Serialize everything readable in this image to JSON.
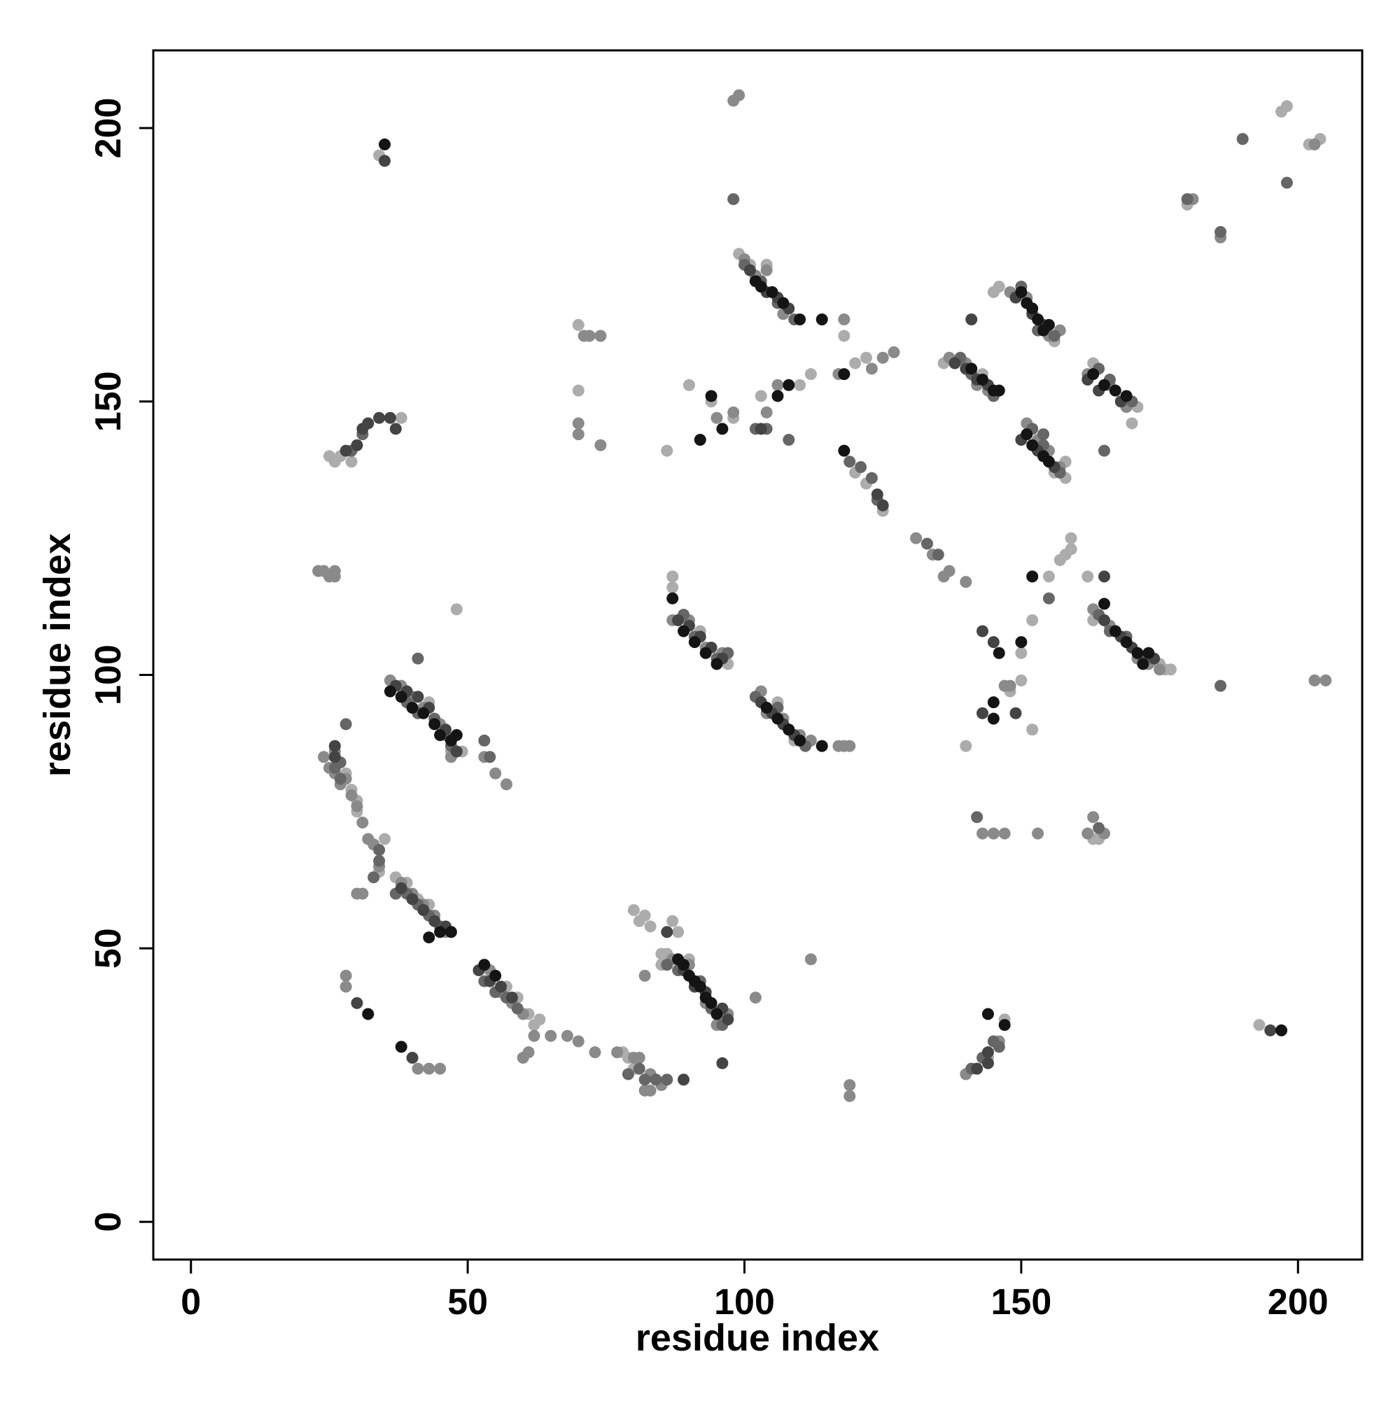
{
  "chart_data": {
    "type": "scatter",
    "xlabel": "residue index",
    "ylabel": "residue index",
    "xlim": [
      -6.8,
      211.6
    ],
    "ylim": [
      -6.9,
      214.2
    ],
    "xticks": [
      0,
      50,
      100,
      150,
      200
    ],
    "yticks": [
      0,
      50,
      100,
      150,
      200
    ],
    "grid": false,
    "series": [
      {
        "color": "#acacac",
        "x": [
          37,
          39,
          43,
          47,
          49,
          86,
          90,
          96,
          99,
          101,
          104,
          146,
          156,
          158,
          158,
          156,
          163,
          171,
          170,
          87,
          87,
          92,
          97,
          106,
          109,
          136,
          143,
          163,
          176,
          177,
          37,
          39,
          41,
          43,
          57,
          59,
          61,
          63,
          62,
          28,
          29,
          30,
          30,
          35,
          34,
          25,
          27,
          26,
          29,
          38,
          48,
          70,
          70,
          78,
          79,
          80,
          80,
          81,
          82,
          83,
          85,
          85,
          87,
          88,
          74,
          86,
          90,
          94,
          98,
          103,
          110,
          112,
          120,
          122,
          118,
          117,
          120,
          122,
          125,
          157,
          158,
          159,
          159,
          155,
          140,
          144,
          147,
          148,
          150,
          152,
          152,
          150,
          162,
          163,
          164,
          198,
          197,
          204,
          202,
          180,
          193,
          34,
          145,
          175
        ],
        "values": [
          98,
          96,
          95,
          86,
          86,
          49,
          48,
          37,
          177,
          175,
          175,
          171,
          161,
          136,
          139,
          137,
          157,
          149,
          146,
          118,
          116,
          108,
          102,
          95,
          88,
          157,
          155,
          110,
          101,
          101,
          63,
          62,
          59,
          58,
          43,
          41,
          38,
          37,
          36,
          82,
          79,
          77,
          75,
          70,
          64,
          140,
          140,
          139,
          139,
          147,
          112,
          164,
          152,
          31,
          30,
          28,
          57,
          55,
          56,
          54,
          47,
          49,
          55,
          53,
          162,
          141,
          153,
          150,
          147,
          151,
          153,
          155,
          157,
          158,
          162,
          155,
          137,
          135,
          130,
          121,
          122,
          123,
          125,
          118,
          87,
          30,
          37,
          97,
          104,
          110,
          90,
          99,
          118,
          70,
          70,
          204,
          203,
          198,
          197,
          186,
          36,
          195,
          170,
          102
        ]
      },
      {
        "color": "#8a8a8a",
        "x": [
          36,
          38,
          40,
          42,
          45,
          47,
          87,
          90,
          93,
          95,
          97,
          100,
          102,
          104,
          107,
          148,
          151,
          155,
          157,
          151,
          153,
          155,
          157,
          162,
          166,
          169,
          87,
          90,
          93,
          96,
          103,
          104,
          107,
          110,
          112,
          137,
          140,
          142,
          144,
          163,
          166,
          171,
          173,
          175,
          38,
          40,
          42,
          44,
          46,
          54,
          56,
          58,
          60,
          24,
          25,
          26,
          27,
          28,
          29,
          30,
          31,
          32,
          33,
          34,
          31,
          30,
          28,
          28,
          61,
          62,
          65,
          68,
          70,
          73,
          77,
          80,
          81,
          83,
          85,
          82,
          83,
          60,
          41,
          43,
          45,
          53,
          55,
          57,
          71,
          72,
          74,
          70,
          70,
          74,
          98,
          95,
          104,
          106,
          117,
          118,
          119,
          118,
          117,
          119,
          119,
          123,
          125,
          127,
          131,
          134,
          137,
          136,
          140,
          163,
          165,
          162,
          145,
          143,
          147,
          153,
          140,
          112,
          102,
          98,
          186,
          181,
          203,
          203,
          205,
          82,
          99,
          23,
          24,
          25,
          26,
          26,
          26,
          146,
          147,
          148
        ],
        "values": [
          99,
          98,
          96,
          94,
          91,
          85,
          48,
          47,
          40,
          36,
          38,
          176,
          173,
          174,
          166,
          170,
          169,
          162,
          163,
          146,
          143,
          141,
          138,
          155,
          153,
          149,
          110,
          110,
          105,
          104,
          97,
          93,
          92,
          89,
          88,
          158,
          157,
          153,
          152,
          112,
          109,
          103,
          102,
          101,
          62,
          60,
          58,
          56,
          53,
          46,
          42,
          40,
          38,
          85,
          83,
          82,
          80,
          81,
          78,
          76,
          73,
          70,
          69,
          65,
          60,
          60,
          45,
          43,
          31,
          34,
          34,
          34,
          33,
          31,
          31,
          30,
          30,
          27,
          25,
          24,
          24,
          30,
          28,
          28,
          28,
          85,
          82,
          80,
          162,
          162,
          162,
          146,
          144,
          142,
          148,
          147,
          148,
          153,
          155,
          165,
          87,
          87,
          87,
          25,
          23,
          156,
          158,
          159,
          125,
          122,
          119,
          118,
          117,
          74,
          71,
          71,
          71,
          71,
          71,
          71,
          27,
          48,
          41,
          205,
          180,
          187,
          197,
          99,
          99,
          45,
          206,
          119,
          119,
          118,
          119,
          118,
          86,
          33,
          98,
          98
        ]
      },
      {
        "color": "#666666",
        "x": [
          39,
          41,
          44,
          46,
          47,
          86,
          88,
          92,
          94,
          96,
          100,
          103,
          106,
          109,
          150,
          153,
          156,
          152,
          154,
          157,
          164,
          166,
          170,
          89,
          91,
          95,
          97,
          102,
          106,
          108,
          111,
          139,
          141,
          145,
          164,
          166,
          169,
          172,
          37,
          39,
          41,
          43,
          45,
          53,
          55,
          57,
          59,
          41,
          26,
          27,
          27,
          31,
          29,
          28,
          33,
          34,
          34,
          53,
          54,
          121,
          123,
          124,
          119,
          133,
          135,
          141,
          143,
          145,
          146,
          102,
          104,
          108,
          82,
          84,
          86,
          79,
          81,
          98,
          180,
          186,
          190,
          198,
          186,
          165,
          155,
          164,
          142,
          154
        ],
        "values": [
          95,
          93,
          92,
          89,
          87,
          47,
          46,
          44,
          39,
          36,
          175,
          172,
          168,
          165,
          171,
          163,
          162,
          145,
          142,
          137,
          156,
          154,
          150,
          111,
          107,
          103,
          104,
          96,
          94,
          90,
          87,
          158,
          155,
          151,
          111,
          108,
          107,
          103,
          60,
          60,
          58,
          56,
          54,
          44,
          42,
          41,
          39,
          103,
          83,
          84,
          81,
          144,
          141,
          91,
          63,
          66,
          68,
          88,
          85,
          138,
          136,
          132,
          139,
          124,
          122,
          28,
          30,
          33,
          32,
          145,
          145,
          143,
          26,
          26,
          26,
          27,
          28,
          187,
          187,
          181,
          198,
          190,
          98,
          141,
          114,
          72,
          74,
          144
        ]
      },
      {
        "color": "#444444",
        "x": [
          37,
          39,
          41,
          43,
          46,
          48,
          89,
          91,
          93,
          96,
          97,
          101,
          104,
          106,
          108,
          149,
          152,
          154,
          150,
          153,
          156,
          162,
          164,
          168,
          88,
          90,
          92,
          94,
          96,
          103,
          105,
          107,
          109,
          138,
          140,
          142,
          144,
          165,
          168,
          170,
          174,
          38,
          40,
          42,
          44,
          46,
          52,
          54,
          56,
          58,
          35,
          26,
          26,
          30,
          40,
          96,
          89,
          143,
          145,
          143,
          149,
          141,
          125,
          124,
          144,
          142,
          144,
          86,
          103,
          31,
          32,
          34,
          28,
          30,
          37,
          36,
          165,
          195
        ],
        "values": [
          98,
          97,
          96,
          94,
          90,
          86,
          46,
          43,
          42,
          39,
          37,
          174,
          170,
          169,
          167,
          169,
          166,
          164,
          143,
          141,
          138,
          154,
          152,
          150,
          110,
          109,
          107,
          105,
          103,
          95,
          93,
          91,
          89,
          157,
          156,
          154,
          153,
          110,
          107,
          105,
          103,
          61,
          59,
          57,
          55,
          54,
          46,
          44,
          43,
          41,
          194,
          87,
          85,
          40,
          30,
          29,
          26,
          108,
          106,
          93,
          93,
          165,
          131,
          133,
          29,
          28,
          31,
          53,
          145,
          145,
          146,
          147,
          141,
          142,
          145,
          147,
          118,
          35
        ]
      },
      {
        "color": "#141414",
        "x": [
          36,
          38,
          40,
          42,
          44,
          45,
          47,
          48,
          88,
          89,
          90,
          91,
          92,
          93,
          94,
          95,
          102,
          103,
          105,
          107,
          110,
          150,
          151,
          152,
          153,
          154,
          155,
          151,
          152,
          154,
          155,
          163,
          165,
          167,
          169,
          87,
          89,
          91,
          93,
          95,
          104,
          106,
          108,
          110,
          114,
          141,
          143,
          145,
          146,
          167,
          169,
          171,
          173,
          172,
          43,
          45,
          47,
          53,
          55,
          35,
          32,
          38,
          92,
          96,
          94,
          106,
          108,
          114,
          118,
          118,
          146,
          150,
          152,
          165,
          145,
          145,
          144,
          147,
          197
        ],
        "values": [
          97,
          96,
          94,
          93,
          91,
          89,
          88,
          89,
          48,
          47,
          45,
          44,
          43,
          41,
          40,
          38,
          172,
          171,
          170,
          168,
          165,
          170,
          168,
          167,
          165,
          163,
          164,
          144,
          142,
          140,
          139,
          155,
          153,
          152,
          151,
          114,
          108,
          106,
          104,
          102,
          94,
          92,
          90,
          88,
          87,
          156,
          154,
          152,
          152,
          108,
          106,
          104,
          104,
          102,
          52,
          53,
          53,
          47,
          45,
          197,
          38,
          32,
          143,
          145,
          151,
          151,
          153,
          165,
          155,
          141,
          104,
          106,
          118,
          113,
          95,
          92,
          38,
          36,
          35
        ]
      }
    ]
  }
}
